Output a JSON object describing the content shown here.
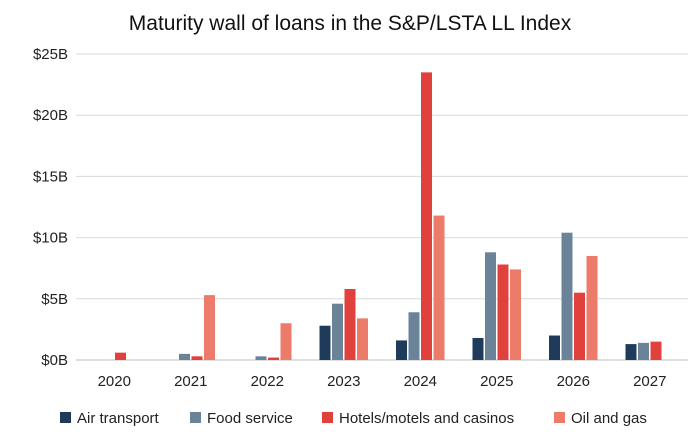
{
  "chart_data": {
    "type": "bar",
    "title": "Maturity wall of loans in the S&P/LSTA LL Index",
    "xlabel": "",
    "ylabel": "",
    "categories": [
      "2020",
      "2021",
      "2022",
      "2023",
      "2024",
      "2025",
      "2026",
      "2027"
    ],
    "ylim": [
      0,
      25
    ],
    "yticks": [
      0,
      5,
      10,
      15,
      20,
      25
    ],
    "ytick_labels": [
      "$0B",
      "$5B",
      "$10B",
      "$15B",
      "$20B",
      "$25B"
    ],
    "grid": true,
    "legend_position": "bottom",
    "series": [
      {
        "name": "Air transport",
        "color": "#1f3b5c",
        "values": [
          0,
          0,
          0,
          2.8,
          1.6,
          1.8,
          2.0,
          1.3
        ]
      },
      {
        "name": "Food service",
        "color": "#6b8398",
        "values": [
          0,
          0.5,
          0.3,
          4.6,
          3.9,
          8.8,
          10.4,
          1.4
        ]
      },
      {
        "name": "Hotels/motels and casinos",
        "color": "#e0413c",
        "values": [
          0.6,
          0.3,
          0.2,
          5.8,
          23.5,
          7.8,
          5.5,
          1.5
        ]
      },
      {
        "name": "Oil and gas",
        "color": "#ec7b6a",
        "values": [
          0,
          5.3,
          3.0,
          3.4,
          11.8,
          7.4,
          8.5,
          0
        ]
      }
    ]
  }
}
